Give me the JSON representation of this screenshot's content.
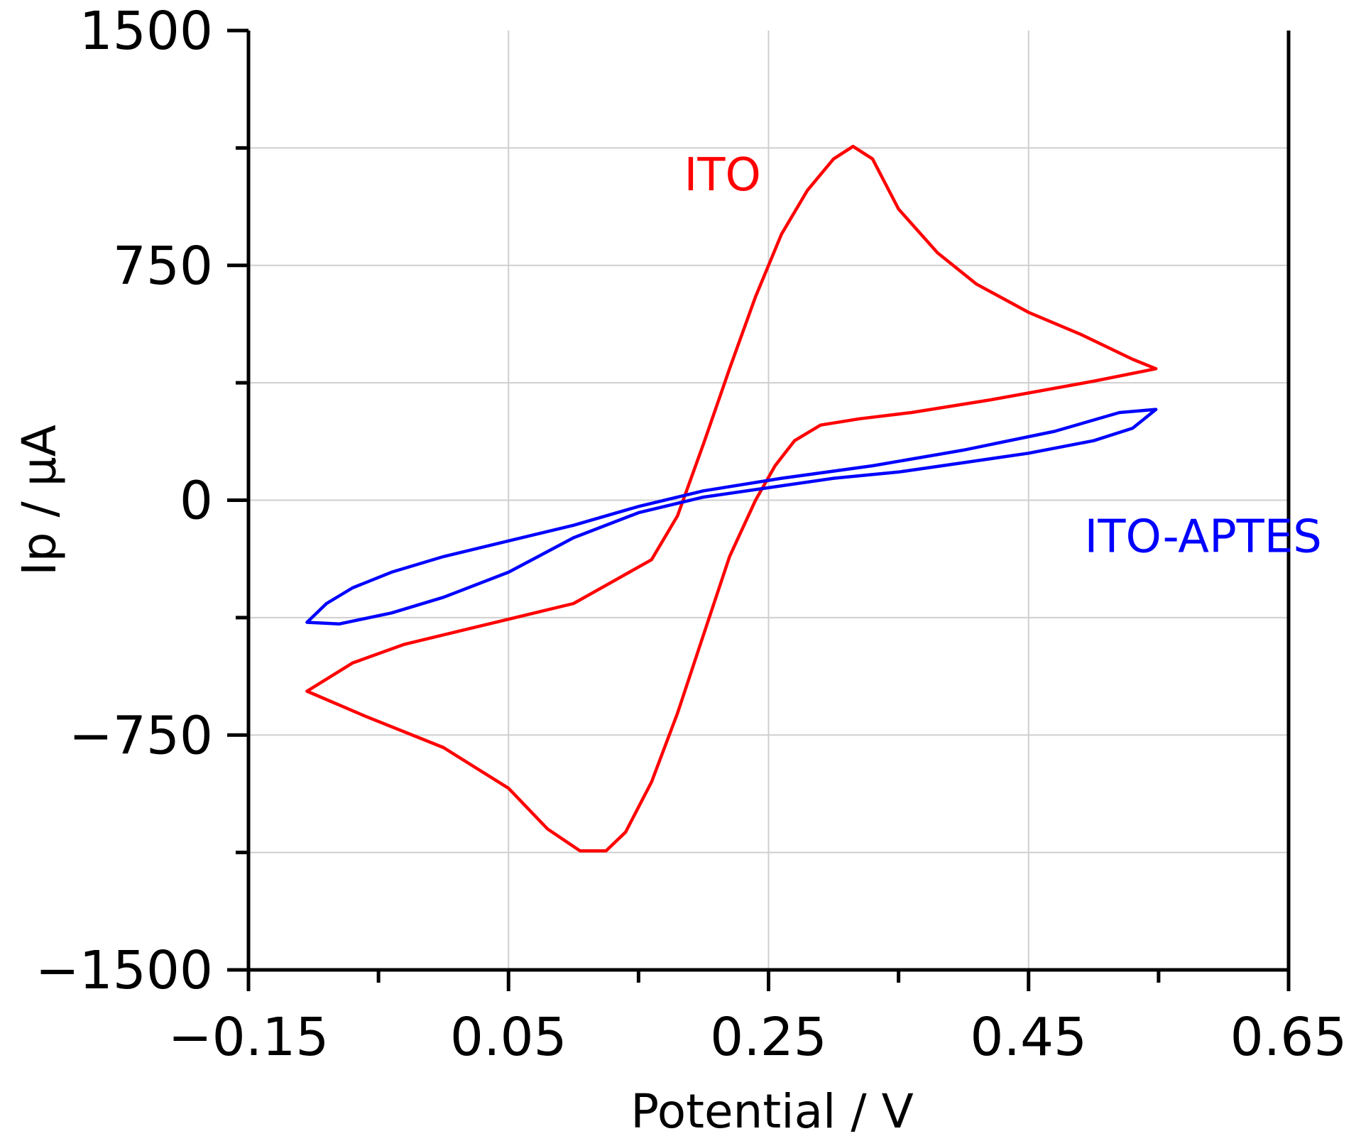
{
  "chart_data": {
    "type": "line",
    "title": "",
    "xlabel": "Potential / V",
    "ylabel": "Ip / µA",
    "xlim": [
      -0.15,
      0.65
    ],
    "ylim": [
      -1500,
      1500
    ],
    "x_ticks": [
      -0.15,
      0.05,
      0.25,
      0.45,
      0.65
    ],
    "x_minor_ticks": [
      -0.05,
      0.15,
      0.35,
      0.55
    ],
    "x_tick_labels": [
      "−0.15",
      "0.05",
      "0.25",
      "0.45",
      "0.65"
    ],
    "y_ticks": [
      1500,
      750,
      0,
      -750,
      -1500
    ],
    "y_minor_ticks": [
      1125,
      375,
      -375,
      -1125
    ],
    "y_tick_labels": [
      "1500",
      "750",
      "0",
      "−750",
      "−1500"
    ],
    "grid": true,
    "series": [
      {
        "name": "ITO",
        "color": "#ff0000",
        "label_position": {
          "x": 0.185,
          "y": 990
        },
        "points": [
          [
            -0.105,
            -610
          ],
          [
            -0.06,
            -690
          ],
          [
            0.0,
            -790
          ],
          [
            0.05,
            -920
          ],
          [
            0.08,
            -1050
          ],
          [
            0.105,
            -1120
          ],
          [
            0.125,
            -1120
          ],
          [
            0.14,
            -1060
          ],
          [
            0.16,
            -900
          ],
          [
            0.18,
            -680
          ],
          [
            0.2,
            -430
          ],
          [
            0.22,
            -180
          ],
          [
            0.24,
            0
          ],
          [
            0.255,
            110
          ],
          [
            0.27,
            190
          ],
          [
            0.29,
            240
          ],
          [
            0.32,
            260
          ],
          [
            0.36,
            280
          ],
          [
            0.42,
            320
          ],
          [
            0.5,
            380
          ],
          [
            0.548,
            420
          ],
          [
            0.53,
            450
          ],
          [
            0.49,
            530
          ],
          [
            0.45,
            600
          ],
          [
            0.41,
            690
          ],
          [
            0.38,
            790
          ],
          [
            0.35,
            930
          ],
          [
            0.33,
            1090
          ],
          [
            0.315,
            1130
          ],
          [
            0.3,
            1090
          ],
          [
            0.28,
            990
          ],
          [
            0.26,
            850
          ],
          [
            0.24,
            650
          ],
          [
            0.22,
            420
          ],
          [
            0.2,
            180
          ],
          [
            0.18,
            -50
          ],
          [
            0.16,
            -190
          ],
          [
            0.13,
            -260
          ],
          [
            0.1,
            -330
          ],
          [
            0.06,
            -370
          ],
          [
            0.02,
            -410
          ],
          [
            -0.03,
            -460
          ],
          [
            -0.07,
            -520
          ],
          [
            -0.105,
            -610
          ]
        ]
      },
      {
        "name": "ITO-APTES",
        "color": "#0000ff",
        "label_position": {
          "x": 0.493,
          "y": -165
        },
        "points": [
          [
            -0.105,
            -390
          ],
          [
            -0.08,
            -395
          ],
          [
            -0.04,
            -360
          ],
          [
            0.0,
            -310
          ],
          [
            0.05,
            -230
          ],
          [
            0.1,
            -120
          ],
          [
            0.15,
            -40
          ],
          [
            0.2,
            10
          ],
          [
            0.25,
            40
          ],
          [
            0.3,
            70
          ],
          [
            0.35,
            90
          ],
          [
            0.4,
            120
          ],
          [
            0.45,
            150
          ],
          [
            0.5,
            190
          ],
          [
            0.53,
            230
          ],
          [
            0.548,
            290
          ],
          [
            0.52,
            280
          ],
          [
            0.47,
            220
          ],
          [
            0.4,
            160
          ],
          [
            0.33,
            110
          ],
          [
            0.26,
            70
          ],
          [
            0.2,
            30
          ],
          [
            0.15,
            -20
          ],
          [
            0.1,
            -80
          ],
          [
            0.05,
            -130
          ],
          [
            0.0,
            -180
          ],
          [
            -0.04,
            -230
          ],
          [
            -0.07,
            -280
          ],
          [
            -0.09,
            -330
          ],
          [
            -0.105,
            -390
          ]
        ]
      }
    ]
  }
}
